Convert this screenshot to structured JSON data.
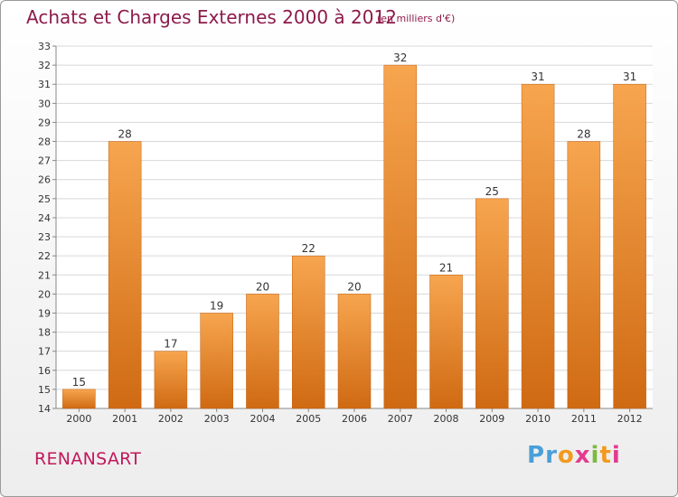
{
  "header": {
    "title": "Achats et Charges Externes 2000 à 2012",
    "subtitle": "(en milliers d'€)"
  },
  "footer": {
    "commune": "RENANSART",
    "logo_text": "Proxiti",
    "logo_letters": [
      {
        "ch": "P",
        "color": "#4a9fd8"
      },
      {
        "ch": "r",
        "color": "#4a9fd8"
      },
      {
        "ch": "o",
        "color": "#f29a1f"
      },
      {
        "ch": "x",
        "color": "#e33b8f"
      },
      {
        "ch": "i",
        "color": "#7dbb3c"
      },
      {
        "ch": "t",
        "color": "#f29a1f"
      },
      {
        "ch": "i",
        "color": "#e33b8f"
      }
    ]
  },
  "colors": {
    "bar_top": "#f7a54f",
    "bar_bottom": "#cf6a13",
    "grid": "#d8d8d8",
    "axis": "#888888"
  },
  "chart_data": {
    "type": "bar",
    "categories": [
      "2000",
      "2001",
      "2002",
      "2003",
      "2004",
      "2005",
      "2006",
      "2007",
      "2008",
      "2009",
      "2010",
      "2011",
      "2012"
    ],
    "values": [
      15,
      28,
      17,
      19,
      20,
      22,
      20,
      32,
      21,
      25,
      31,
      28,
      31
    ],
    "ylim": [
      14,
      33
    ],
    "yticks": [
      14,
      15,
      16,
      17,
      18,
      19,
      20,
      21,
      22,
      23,
      24,
      25,
      26,
      27,
      28,
      29,
      30,
      31,
      32,
      33
    ],
    "grid": true,
    "data_labels": true
  }
}
